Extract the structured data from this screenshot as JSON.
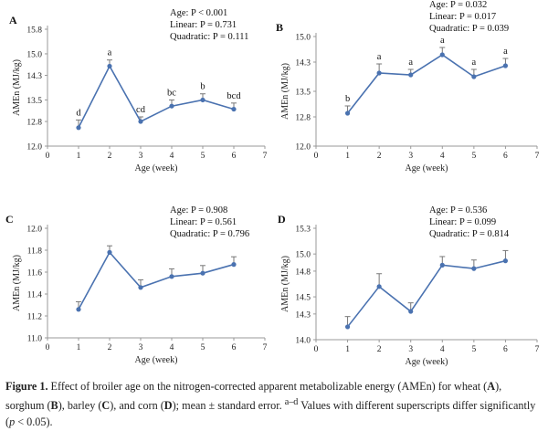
{
  "chart_data": [
    {
      "panel": "A",
      "type": "line",
      "title": "",
      "xlabel": "Age (week)",
      "ylabel": "AMEn (MJ/kg)",
      "categories": [
        1,
        2,
        3,
        4,
        5,
        6
      ],
      "values": [
        12.6,
        14.6,
        12.8,
        13.3,
        13.5,
        13.2
      ],
      "errors": [
        0.25,
        0.2,
        0.15,
        0.2,
        0.2,
        0.2
      ],
      "point_labels": [
        "d",
        "a",
        "cd",
        "bc",
        "b",
        "bcd"
      ],
      "x_ticks": [
        "0",
        "1",
        "2",
        "3",
        "4",
        "5",
        "6",
        "7"
      ],
      "xlim": [
        0,
        7
      ],
      "y_ticks": [
        "12.0",
        "12.8",
        "13.5",
        "14.3",
        "15.0",
        "15.8"
      ],
      "ylim": [
        12.0,
        15.8
      ],
      "stats": [
        "Age: P < 0.001",
        "Linear: P = 0.731",
        "Quadratic: P = 0.111"
      ],
      "series_color": "#4a72b0"
    },
    {
      "panel": "B",
      "type": "line",
      "title": "",
      "xlabel": "Age (week)",
      "ylabel": "AMEn (MJ/kg)",
      "categories": [
        1,
        2,
        3,
        4,
        5,
        6
      ],
      "values": [
        12.9,
        14.0,
        13.95,
        14.5,
        13.9,
        14.2
      ],
      "errors": [
        0.2,
        0.25,
        0.15,
        0.2,
        0.2,
        0.2
      ],
      "point_labels": [
        "b",
        "a",
        "a",
        "a",
        "a",
        "a"
      ],
      "x_ticks": [
        "0",
        "1",
        "2",
        "3",
        "4",
        "5",
        "6",
        "7"
      ],
      "xlim": [
        0,
        7
      ],
      "y_ticks": [
        "12.0",
        "12.8",
        "13.5",
        "14.3",
        "15.0"
      ],
      "ylim": [
        12.0,
        15.0
      ],
      "stats": [
        "Age: P = 0.032",
        "Linear: P = 0.017",
        "Quadratic: P = 0.039"
      ],
      "series_color": "#4a72b0"
    },
    {
      "panel": "C",
      "type": "line",
      "title": "",
      "xlabel": "Age (week)",
      "ylabel": "AMEn (MJ/kg)",
      "categories": [
        1,
        2,
        3,
        4,
        5,
        6
      ],
      "values": [
        11.26,
        11.78,
        11.46,
        11.56,
        11.59,
        11.67
      ],
      "errors": [
        0.07,
        0.06,
        0.07,
        0.07,
        0.07,
        0.07
      ],
      "point_labels": [],
      "x_ticks": [
        "0",
        "1",
        "2",
        "3",
        "4",
        "5",
        "6",
        "7"
      ],
      "xlim": [
        0,
        7
      ],
      "y_ticks": [
        "11.0",
        "11.2",
        "11.4",
        "11.6",
        "11.8",
        "12.0"
      ],
      "ylim": [
        11.0,
        12.0
      ],
      "stats": [
        "Age: P = 0.908",
        "Linear: P = 0.561",
        "Quadratic: P = 0.796"
      ],
      "series_color": "#4a72b0"
    },
    {
      "panel": "D",
      "type": "line",
      "title": "",
      "xlabel": "Age (week)",
      "ylabel": "AMEn (MJ/kg)",
      "categories": [
        1,
        2,
        3,
        4,
        5,
        6
      ],
      "values": [
        14.15,
        14.62,
        14.33,
        14.87,
        14.83,
        14.92
      ],
      "errors": [
        0.12,
        0.15,
        0.1,
        0.1,
        0.1,
        0.12
      ],
      "point_labels": [],
      "x_ticks": [
        "0",
        "1",
        "2",
        "3",
        "4",
        "5",
        "6",
        "7"
      ],
      "xlim": [
        0,
        7
      ],
      "y_ticks": [
        "14.0",
        "14.3",
        "14.5",
        "14.8",
        "15.0",
        "15.3"
      ],
      "ylim": [
        14.0,
        15.3
      ],
      "stats": [
        "Age: P = 0.536",
        "Linear: P = 0.099",
        "Quadratic: P = 0.814"
      ],
      "series_color": "#4a72b0"
    }
  ],
  "caption": {
    "figure_label": "Figure 1.",
    "p1": " Effect of broiler age on the nitrogen-corrected apparent metabolizable energy (AMEn) for wheat (",
    "A": "A",
    "p2": "), sorghum (",
    "B": "B",
    "p3": "), barley (",
    "C": "C",
    "p4": "), and corn (",
    "D": "D",
    "p5": "); mean ± standard error. ",
    "sup": "a–d",
    "p6": " Values with different superscripts differ significantly (",
    "p_italic": "p",
    "p7": " < 0.05)."
  }
}
